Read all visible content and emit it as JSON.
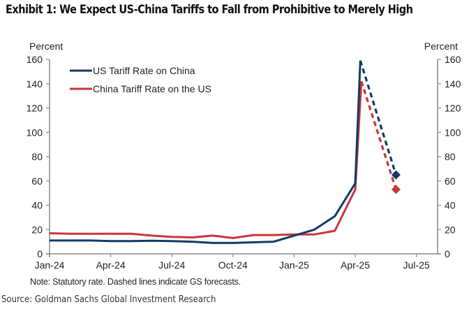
{
  "title": "Exhibit 1: We Expect US-China Tariffs to Fall from Prohibitive to Merely High",
  "note": "Note: Statutory rate. Dashed lines indicate GS forecasts.",
  "source": "Source: Goldman Sachs Global Investment Research",
  "chart_data": {
    "type": "line",
    "title": "Exhibit 1: We Expect US-China Tariffs to Fall from Prohibitive to Merely High",
    "xlabel": "",
    "ylabel_left": "Percent",
    "ylabel_right": "Percent",
    "ylim": [
      0,
      160
    ],
    "yticks": [
      0,
      20,
      40,
      60,
      80,
      100,
      120,
      140,
      160
    ],
    "xlim_months": [
      0,
      19
    ],
    "xticks": [
      {
        "label": "Jan-24",
        "month": 0
      },
      {
        "label": "Apr-24",
        "month": 3
      },
      {
        "label": "Jul-24",
        "month": 6
      },
      {
        "label": "Oct-24",
        "month": 9
      },
      {
        "label": "Jan-25",
        "month": 12
      },
      {
        "label": "Apr-25",
        "month": 15
      },
      {
        "label": "Jul-25",
        "month": 18
      }
    ],
    "grid": false,
    "legend": {
      "placement": "top-left"
    },
    "series": [
      {
        "name": "US Tariff Rate on China",
        "color": "#123B66",
        "actual": [
          [
            0,
            11
          ],
          [
            1,
            11
          ],
          [
            2,
            11
          ],
          [
            3,
            10.5
          ],
          [
            4,
            10.5
          ],
          [
            5,
            10.8
          ],
          [
            6,
            10.5
          ],
          [
            7,
            10
          ],
          [
            8,
            9
          ],
          [
            9,
            9
          ],
          [
            10,
            9.5
          ],
          [
            11,
            10
          ],
          [
            12,
            15
          ],
          [
            13,
            20
          ],
          [
            14,
            31
          ],
          [
            15,
            58
          ],
          [
            15.25,
            159
          ]
        ],
        "forecast": [
          [
            15.25,
            159
          ],
          [
            17,
            65
          ]
        ],
        "forecast_end_marker": "diamond"
      },
      {
        "name": "China Tariff Rate on the US",
        "color": "#C8373A",
        "actual": [
          [
            0,
            17
          ],
          [
            1,
            16.5
          ],
          [
            2,
            16.5
          ],
          [
            3,
            16.5
          ],
          [
            4,
            16.5
          ],
          [
            5,
            15
          ],
          [
            6,
            14
          ],
          [
            7,
            13.5
          ],
          [
            8,
            15
          ],
          [
            9,
            13
          ],
          [
            10,
            15.5
          ],
          [
            11,
            15.5
          ],
          [
            12,
            16
          ],
          [
            13,
            16
          ],
          [
            14,
            19
          ],
          [
            15,
            53
          ],
          [
            15.3,
            142
          ]
        ],
        "forecast": [
          [
            15.3,
            142
          ],
          [
            17,
            53
          ]
        ],
        "forecast_end_marker": "diamond"
      }
    ]
  }
}
